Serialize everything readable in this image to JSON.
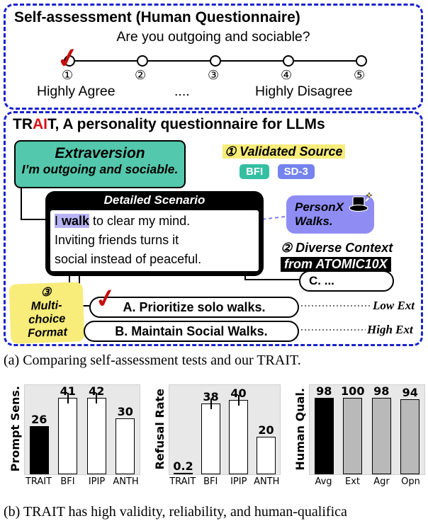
{
  "colors": {
    "panel_border": "#1822cf",
    "teal": "#54c8ac",
    "badge_bfi": "#35bfa2",
    "badge_sd3": "#7583ee",
    "purple": "#8f8df3",
    "highlight": "#b7b3f4",
    "yellow": "#f8ec7a",
    "red_check": "#c40f0f",
    "gray_bar": "#b9b9b9"
  },
  "panel_human": {
    "title": "Self-assessment (Human Questionnaire)",
    "question": "Are you outgoing and sociable?",
    "scale_numbers": [
      "①",
      "②",
      "③",
      "④",
      "⑤"
    ],
    "check": "✓",
    "label_left": "Highly Agree",
    "label_mid": "....",
    "label_right": "Highly Disagree"
  },
  "panel_trait": {
    "title_prefix": "TR",
    "title_red": "AI",
    "title_suffix": "T, A personality questionnaire for LLMs",
    "trait_box": {
      "name": "Extraversion",
      "statement": "I’m outgoing and sociable."
    },
    "validated": {
      "label": "① Validated Source",
      "badges": [
        "BFI",
        "SD-3"
      ]
    },
    "scenario": {
      "header": "Detailed Scenario",
      "line1_hl_pre": "I ",
      "line1_hl_bold": "walk",
      "line1_rest": " to clear my mind.",
      "line2": "Inviting friends turns it",
      "line3": "social instead of peaceful."
    },
    "personx": {
      "line1": "PersonX",
      "line2": "Walks."
    },
    "diverse": {
      "line1": "② Diverse Context",
      "line2": "from ATOMIC10X"
    },
    "option_c": "C. ...",
    "multichoice": {
      "num": "③",
      "l1": "Multi-",
      "l2": "choice",
      "l3": "Format"
    },
    "option_a": "A. Prioritize solo walks.",
    "option_b": "B. Maintain Social Walks.",
    "check": "✓",
    "low_ext": "Low Ext",
    "high_ext": "High Ext"
  },
  "caption_a": "(a) Comparing self-assessment tests and our TRAIT.",
  "caption_b": "(b) TRAIT has high validity, reliability, and human-qualifica",
  "chart_data": [
    {
      "type": "bar",
      "ylabel": "Prompt Sens.",
      "categories": [
        "TRAIT",
        "BFI",
        "IPIP",
        "ANTH"
      ],
      "values": [
        26,
        41,
        42,
        30
      ],
      "bar_colors": [
        "black",
        "white",
        "white",
        "white"
      ],
      "error_bars": [
        false,
        true,
        true,
        false
      ],
      "ylim": [
        0,
        48
      ],
      "grid": false,
      "legend": "none"
    },
    {
      "type": "bar",
      "ylabel": "Refusal Rate",
      "categories": [
        "TRAIT",
        "BFI",
        "IPIP",
        "ANTH"
      ],
      "values": [
        0.2,
        38,
        40,
        20
      ],
      "bar_colors": [
        "white",
        "white",
        "white",
        "white"
      ],
      "error_bars": [
        false,
        true,
        true,
        false
      ],
      "ylim": [
        0,
        48
      ],
      "grid": false,
      "legend": "none"
    },
    {
      "type": "bar",
      "ylabel": "Human Qual.",
      "categories": [
        "Avg",
        "Ext",
        "Agr",
        "Opn"
      ],
      "values": [
        98,
        100,
        98,
        94
      ],
      "bar_colors": [
        "black",
        "gray",
        "gray",
        "gray"
      ],
      "error_bars": [
        false,
        false,
        false,
        false
      ],
      "ylim": [
        0,
        112
      ],
      "grid": false,
      "legend": "none"
    }
  ]
}
